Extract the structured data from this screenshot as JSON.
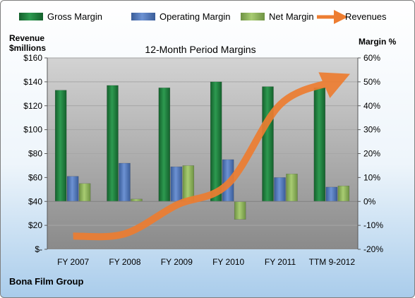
{
  "chart_data": {
    "type": "bar",
    "title": "12-Month Period Margins",
    "company": "Bona Film Group",
    "categories": [
      "FY 2007",
      "FY 2008",
      "FY 2009",
      "FY 2010",
      "FY 2011",
      "TTM 9-2012"
    ],
    "series": [
      {
        "name": "Gross Margin",
        "axis": "right",
        "color": "#1e7a3c",
        "values": [
          46.5,
          48.5,
          47.5,
          50,
          48,
          47.5
        ]
      },
      {
        "name": "Operating Margin",
        "axis": "right",
        "color": "#4f75b8",
        "values": [
          10.5,
          16,
          14.5,
          17.5,
          10,
          6
        ]
      },
      {
        "name": "Net Margin",
        "axis": "right",
        "color": "#8fb35a",
        "values": [
          7.5,
          1,
          15,
          -7.5,
          11.5,
          6.5
        ]
      },
      {
        "name": "Revenues",
        "axis": "left",
        "type": "line",
        "color": "#ed7d31",
        "values": [
          11,
          13,
          37,
          55,
          121,
          140
        ]
      }
    ],
    "left_axis": {
      "title_line1": "Revenue",
      "title_line2": "$millions",
      "min": 0,
      "max": 160,
      "step": 20,
      "tick_labels": [
        "$-",
        "$20",
        "$40",
        "$60",
        "$80",
        "$100",
        "$120",
        "$140",
        "$160"
      ]
    },
    "right_axis": {
      "title": "Margin %",
      "min": -20,
      "max": 60,
      "step": 10,
      "tick_labels": [
        "-20%",
        "-10%",
        "0%",
        "10%",
        "20%",
        "30%",
        "40%",
        "50%",
        "60%"
      ]
    },
    "legend": {
      "position": "top",
      "entries": [
        "Gross Margin",
        "Operating Margin",
        "Net Margin",
        "Revenues"
      ]
    },
    "grid": true
  }
}
